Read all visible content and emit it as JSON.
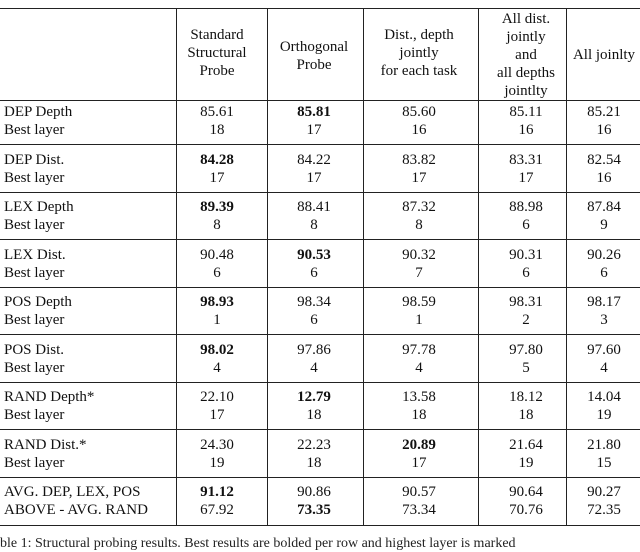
{
  "headers": [
    [
      "Standard",
      "Structural",
      "Probe"
    ],
    [
      "Orthogonal",
      "Probe"
    ],
    [
      "Dist., depth",
      "jointly",
      "for each task"
    ],
    [
      "All dist.",
      "jointly",
      "and",
      "all depths",
      "jointlty"
    ],
    [
      "All joinlty"
    ]
  ],
  "groups": [
    {
      "label": "DEP Depth",
      "sub": "Best layer",
      "values": [
        "85.61",
        "85.81",
        "85.60",
        "85.11",
        "85.21"
      ],
      "layers": [
        "18",
        "17",
        "16",
        "16",
        "16"
      ],
      "bold": 1
    },
    {
      "label": "DEP Dist.",
      "sub": "Best layer",
      "values": [
        "84.28",
        "84.22",
        "83.82",
        "83.31",
        "82.54"
      ],
      "layers": [
        "17",
        "17",
        "17",
        "17",
        "16"
      ],
      "bold": 0
    },
    {
      "label": "LEX Depth",
      "sub": "Best layer",
      "values": [
        "89.39",
        "88.41",
        "87.32",
        "88.98",
        "87.84"
      ],
      "layers": [
        "8",
        "8",
        "8",
        "6",
        "9"
      ],
      "bold": 0
    },
    {
      "label": "LEX Dist.",
      "sub": "Best layer",
      "values": [
        "90.48",
        "90.53",
        "90.32",
        "90.31",
        "90.26"
      ],
      "layers": [
        "6",
        "6",
        "7",
        "6",
        "6"
      ],
      "bold": 1
    },
    {
      "label": "POS Depth",
      "sub": "Best layer",
      "values": [
        "98.93",
        "98.34",
        "98.59",
        "98.31",
        "98.17"
      ],
      "layers": [
        "1",
        "6",
        "1",
        "2",
        "3"
      ],
      "bold": 0
    },
    {
      "label": "POS Dist.",
      "sub": "Best layer",
      "values": [
        "98.02",
        "97.86",
        "97.78",
        "97.80",
        "97.60"
      ],
      "layers": [
        "4",
        "4",
        "4",
        "5",
        "4"
      ],
      "bold": 0
    },
    {
      "label": "RAND Depth*",
      "sub": "Best layer",
      "values": [
        "22.10",
        "12.79",
        "13.58",
        "18.12",
        "14.04"
      ],
      "layers": [
        "17",
        "18",
        "18",
        "18",
        "19"
      ],
      "bold": 1
    },
    {
      "label": "RAND Dist.*",
      "sub": "Best layer",
      "values": [
        "24.30",
        "22.23",
        "20.89",
        "21.64",
        "21.80"
      ],
      "layers": [
        "19",
        "18",
        "17",
        "19",
        "15"
      ],
      "bold": 2
    },
    {
      "label": "AVG. DEP, LEX, POS",
      "sub": "ABOVE - AVG. RAND",
      "values": [
        "91.12",
        "90.86",
        "90.57",
        "90.64",
        "90.27"
      ],
      "layers": [
        "67.92",
        "73.35",
        "73.34",
        "70.76",
        "72.35"
      ],
      "bold": 0,
      "boldSub": 1
    }
  ],
  "caption": "ble 1: Structural probing results. Best results are bolded per row and highest layer is marked"
}
